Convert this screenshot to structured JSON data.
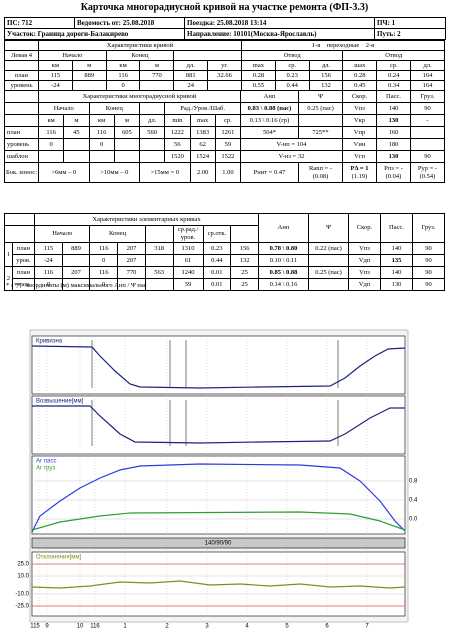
{
  "title": "Карточка многорадиусной кривой на участке ремонта (ФП-3.3)",
  "header": {
    "ps": "ПС: 712",
    "vedomost": "Ведомость от: 25.08.2018",
    "trip": "Поездка: 25.08.2018 13:14",
    "pch": "ПЧ: 1",
    "section": "Участок: Граница дороги-Балакирево",
    "direction": "Направление: 10101(Москва-Ярославль)",
    "track": "Путь: 2"
  },
  "curve": {
    "side": "Левая 4",
    "title": "Характеристики кривой",
    "transitions": [
      "1-я",
      "переходные",
      "2-я"
    ],
    "head2": [
      "Начало",
      "Конец",
      "Отвод",
      "Отвод"
    ],
    "head3": [
      "км",
      "м",
      "км",
      "м",
      "дл.",
      "уг.",
      "max",
      "ср.",
      "дл.",
      "шах",
      "ср.",
      "дл."
    ],
    "rows": [
      [
        "план",
        "115",
        "889",
        "116",
        "770",
        "881",
        "32.66",
        "0.28",
        "0.23",
        "156",
        "0.28",
        "0.24",
        "164"
      ],
      [
        "уровень",
        "-24",
        "0",
        "24",
        "0.55",
        "0.44",
        "132",
        "0.45",
        "0.34",
        "164"
      ]
    ]
  },
  "multi": {
    "title": "Характеристики многорадиусной кривой",
    "cols": [
      "Анп",
      "Ψ",
      "Скор.",
      "Пасс.",
      "Груз."
    ],
    "head2": [
      "Начало",
      "Конец",
      "Рад./Уров./Шаб."
    ],
    "anp_pass": "0.83 \\ 0.88 (пас)",
    "psi_pass": "0.25 (пас)",
    "head3": [
      "км",
      "м",
      "км",
      "м",
      "дл.",
      "min",
      "max",
      "ср."
    ],
    "anp_gr": "0.13 \\ 0.16 (гр)",
    "speeds": [
      [
        "Vпз",
        "140",
        "90"
      ],
      [
        "Vкр",
        "130",
        "-"
      ],
      [
        "Vпр",
        "160"
      ],
      [
        "Vин",
        "180"
      ],
      [
        "Vгп",
        "130",
        "90"
      ]
    ],
    "rows": [
      [
        "план",
        "116",
        "45",
        "116",
        "605",
        "560",
        "1222",
        "1383",
        "1261",
        "504*",
        "725**"
      ],
      [
        "уровень",
        "0",
        "0",
        "56",
        "62",
        "59",
        "V-нп = 104"
      ],
      [
        "шаблон",
        "1520",
        "1524",
        "1522",
        "V-нз = 32"
      ]
    ],
    "wear": [
      "Бок. износ:",
      ">6мм – 0",
      ">10мм – 0",
      ">15мм = 0",
      "2.00",
      "1.00",
      "Рнит = 0.47",
      "Ranп = -",
      "(0.08)",
      "PΔ = 1",
      "(1.19)",
      "Рпз = -",
      "(0.04)",
      "Рур = -",
      "(0.54)"
    ]
  },
  "elem": {
    "title": "Характеристики элементарных кривых",
    "cols": [
      "Анп",
      "Ψ",
      "Скор.",
      "Пасс.",
      "Груз."
    ],
    "head2": [
      "Начало",
      "Конец",
      "ср.рад./ уров.",
      "ср.отк."
    ],
    "rows": [
      [
        "1",
        "план",
        "115",
        "889",
        "116",
        "207",
        "318",
        "1310",
        "0.23",
        "156",
        "0.78 \\ 0.80",
        "0.22 (пас)",
        "Vпз",
        "140",
        "90"
      ],
      [
        "уров.",
        "-24",
        "0",
        "207",
        "61",
        "0.44",
        "132",
        "0.10 \\ 0.11",
        "Vдп",
        "135",
        "90"
      ],
      [
        "2",
        "план",
        "116",
        "207",
        "116",
        "770",
        "563",
        "1240",
        "0.01",
        "25",
        "0.85 \\ 0.88",
        "0.25 (пас)",
        "Vпз",
        "140",
        "90"
      ],
      [
        "уров.",
        "0",
        "0",
        "59",
        "0.01",
        "25",
        "0.14 \\ 0.16",
        "Vдп",
        "130",
        "90"
      ]
    ]
  },
  "footnote": "* / ** - координаты (м) максимального Анп / Ψ пас",
  "charts": {
    "panel1": "Кривизна",
    "panel2": "Возвышение[мм]",
    "legend": [
      "Аг пасс",
      "Аг груз"
    ],
    "right_ticks": [
      "0.8",
      "0.4",
      "0.0"
    ],
    "speed_bar": "140/90/90",
    "panel4": "Отклонения[мм]",
    "dev_ticks": [
      "25.0",
      "10.0",
      "-10.0",
      "-25.0"
    ],
    "x_labels": [
      "115",
      "9",
      "10",
      "116",
      "1",
      "2",
      "3",
      "4",
      "5",
      "6",
      "7"
    ]
  }
}
